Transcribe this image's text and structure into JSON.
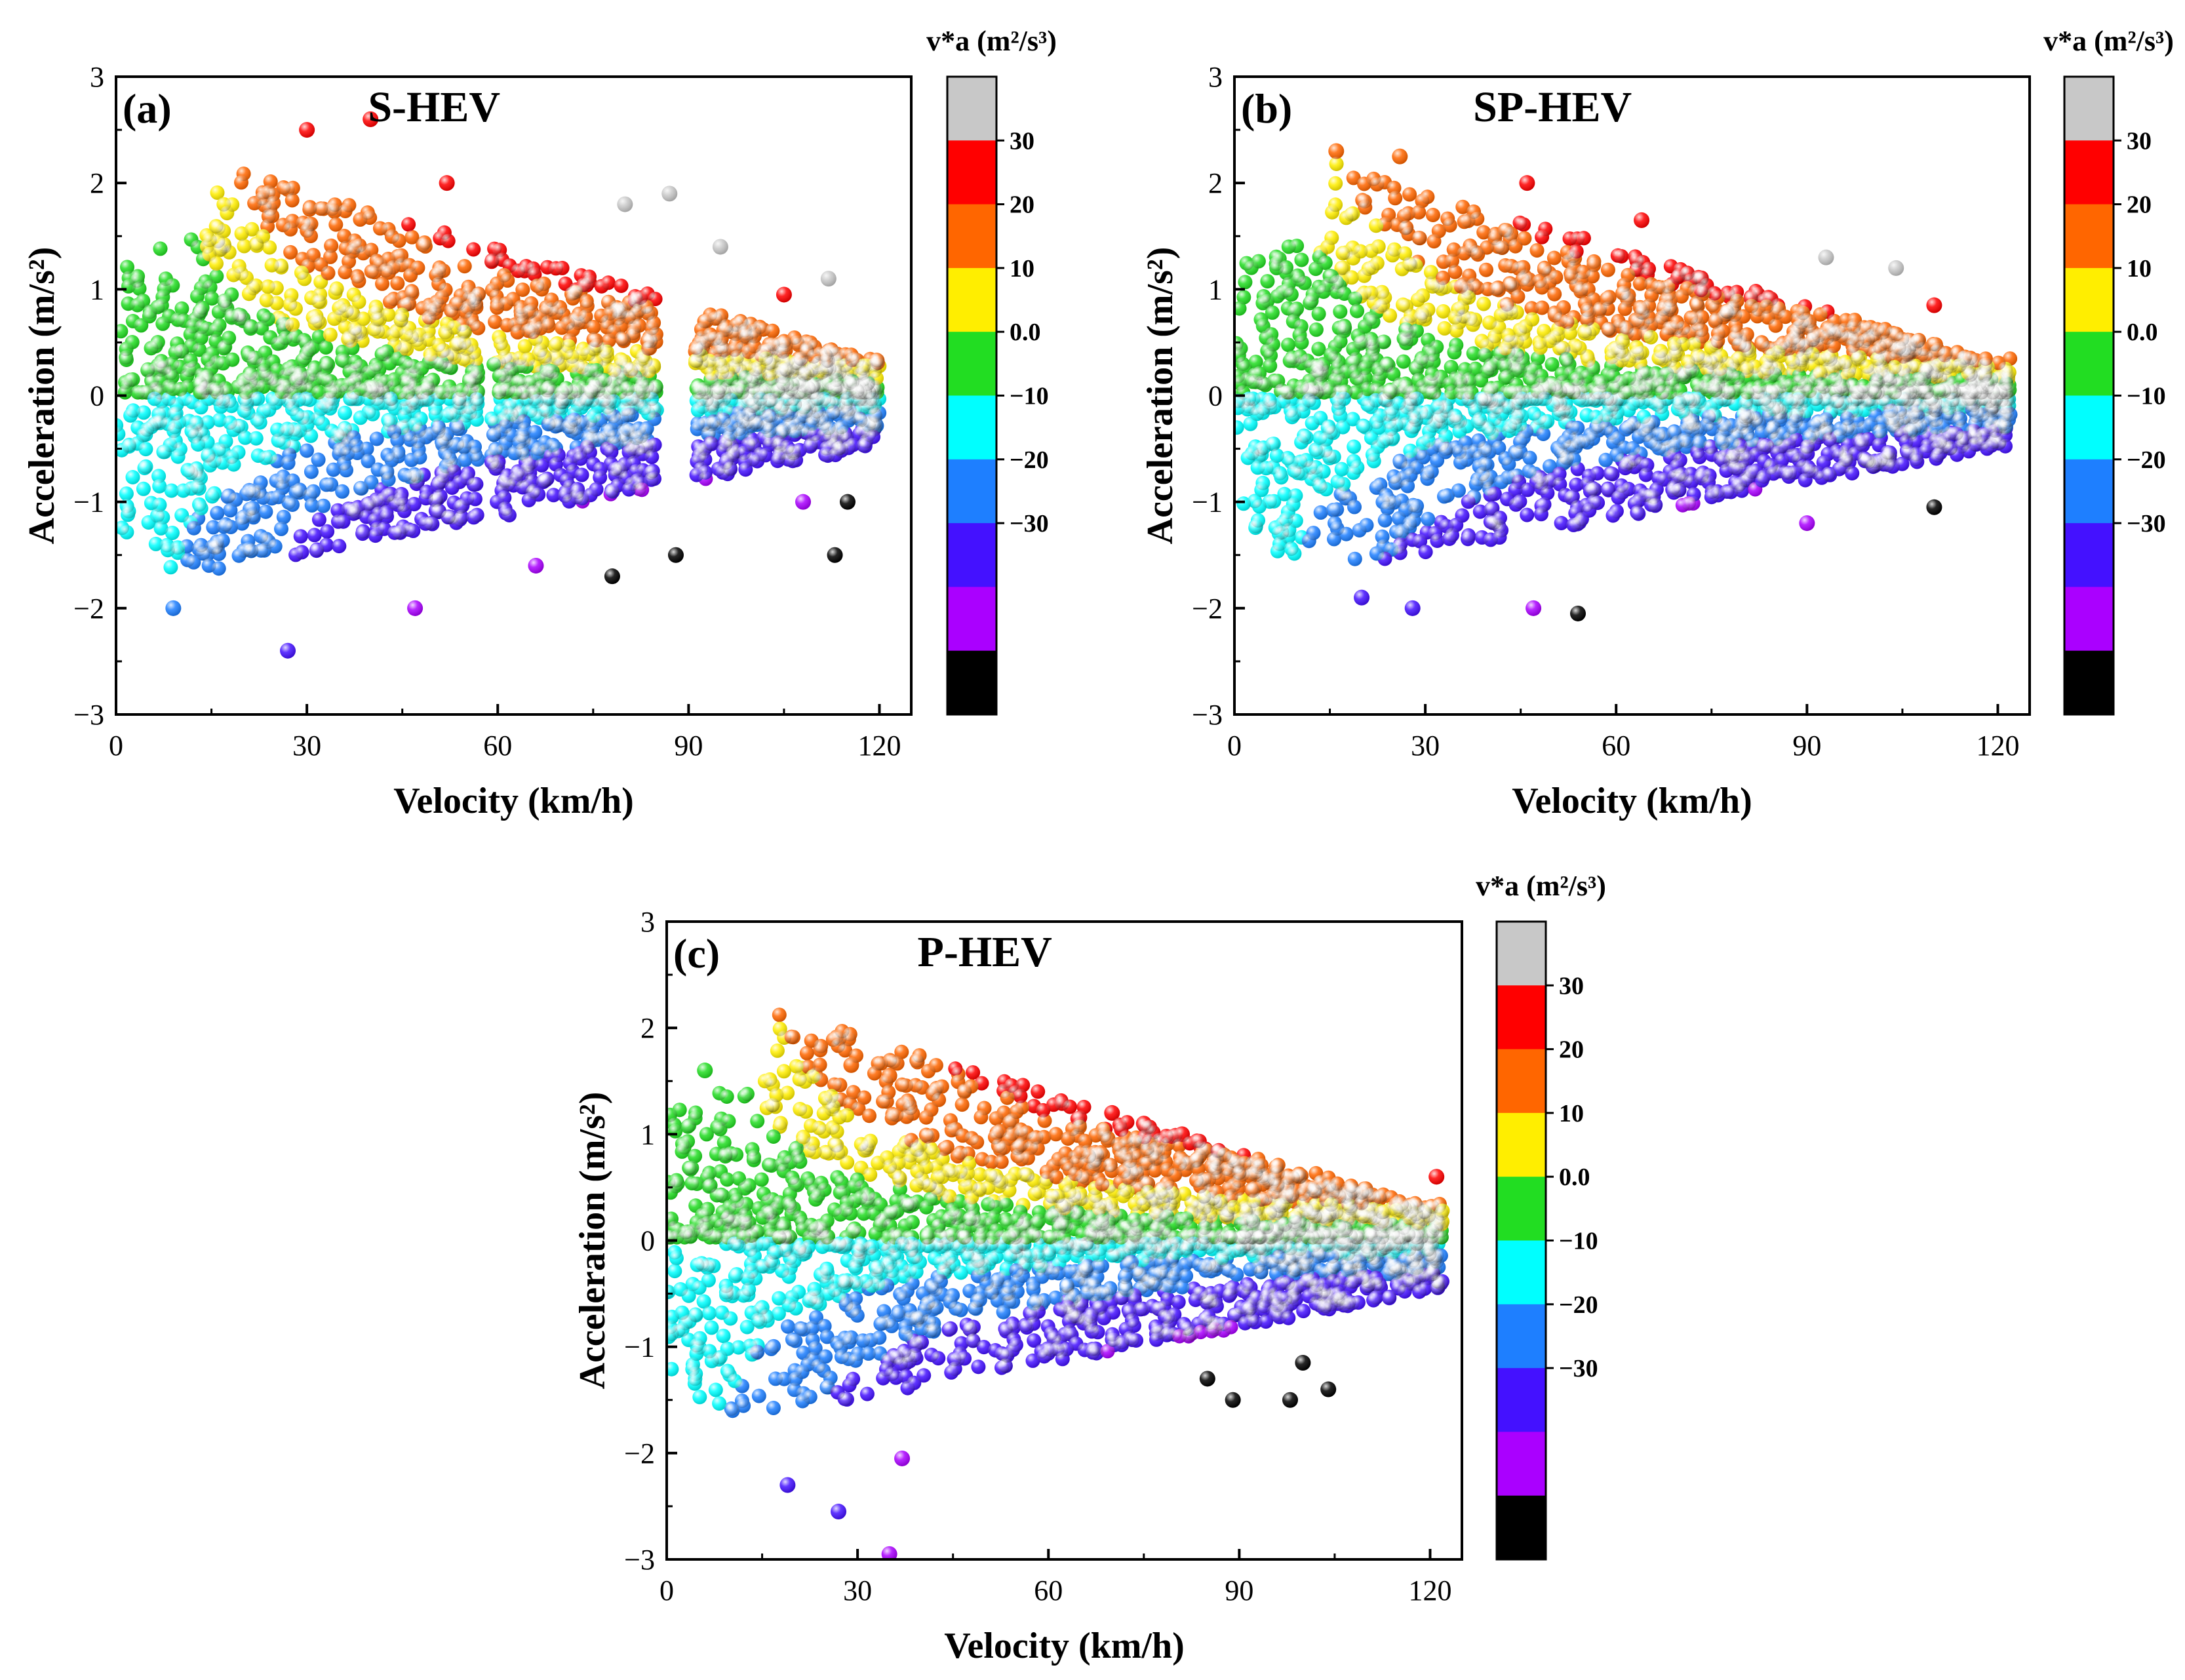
{
  "figure": {
    "colorbar_title": "v*a (m²/s³)",
    "colorbar": {
      "bins": [
        {
          "label": "",
          "color": "#c8c8c8"
        },
        {
          "label": "30",
          "color": "#ff0000"
        },
        {
          "label": "20",
          "color": "#ff6600"
        },
        {
          "label": "10",
          "color": "#ffee00"
        },
        {
          "label": "0.0",
          "color": "#22dd22"
        },
        {
          "label": "−10",
          "color": "#00ffff"
        },
        {
          "label": "−20",
          "color": "#1e7fff"
        },
        {
          "label": "−30",
          "color": "#4411ff"
        },
        {
          "label": "",
          "color": "#aa00ff"
        },
        {
          "label": "",
          "color": "#000000"
        }
      ]
    }
  },
  "chart_data": [
    {
      "type": "scatter",
      "panel": "(a)",
      "title": "S-HEV",
      "xlabel": "Velocity (km/h)",
      "ylabel": "Acceleration (m/s²)",
      "xlim": [
        0,
        125
      ],
      "ylim": [
        -3,
        3
      ],
      "xticks": [
        0,
        30,
        60,
        90,
        120
      ],
      "yticks": [
        -3,
        -2,
        -1,
        0,
        1,
        2,
        3
      ],
      "color_by": "v*a (m²/s³)",
      "color_bins": [
        -40,
        -30,
        -20,
        -10,
        0,
        10,
        20,
        30,
        40
      ],
      "speed_gaps": [
        [
          57,
          59
        ],
        [
          85,
          91
        ]
      ],
      "max_speed": 120,
      "points": [
        [
          30,
          2.5
        ],
        [
          40,
          2.6
        ],
        [
          52,
          2.0
        ],
        [
          80,
          1.8
        ],
        [
          87,
          1.9
        ],
        [
          95,
          1.4
        ],
        [
          112,
          1.1
        ],
        [
          105,
          0.95
        ],
        [
          9,
          -2.0
        ],
        [
          27,
          -2.4
        ],
        [
          47,
          -2.0
        ],
        [
          66,
          -1.6
        ],
        [
          78,
          -1.7
        ],
        [
          88,
          -1.5
        ],
        [
          108,
          -1.0
        ],
        [
          115,
          -1.0
        ],
        [
          113,
          -1.5
        ]
      ]
    },
    {
      "type": "scatter",
      "panel": "(b)",
      "title": "SP-HEV",
      "xlabel": "Velocity (km/h)",
      "ylabel": "Acceleration (m/s²)",
      "xlim": [
        0,
        125
      ],
      "ylim": [
        -3,
        3
      ],
      "xticks": [
        0,
        30,
        60,
        90,
        120
      ],
      "yticks": [
        -3,
        -2,
        -1,
        0,
        1,
        2,
        3
      ],
      "color_by": "v*a (m²/s³)",
      "color_bins": [
        -40,
        -30,
        -20,
        -10,
        0,
        10,
        20,
        30,
        40
      ],
      "speed_gaps": [],
      "max_speed": 122,
      "points": [
        [
          16,
          2.3
        ],
        [
          26,
          2.25
        ],
        [
          46,
          2.0
        ],
        [
          64,
          1.65
        ],
        [
          93,
          1.3
        ],
        [
          104,
          1.2
        ],
        [
          110,
          0.85
        ],
        [
          20,
          -1.9
        ],
        [
          28,
          -2.0
        ],
        [
          47,
          -2.0
        ],
        [
          54,
          -2.05
        ],
        [
          90,
          -1.2
        ],
        [
          110,
          -1.05
        ]
      ]
    },
    {
      "type": "scatter",
      "panel": "(c)",
      "title": "P-HEV",
      "xlabel": "Velocity (km/h)",
      "ylabel": "Acceleration (m/s²)",
      "xlim": [
        0,
        125
      ],
      "ylim": [
        -3,
        3
      ],
      "xticks": [
        0,
        30,
        60,
        90,
        120
      ],
      "yticks": [
        -3,
        -2,
        -1,
        0,
        1,
        2,
        3
      ],
      "color_by": "v*a (m²/s³)",
      "color_bins": [
        -40,
        -30,
        -20,
        -10,
        0,
        10,
        20,
        30,
        40
      ],
      "speed_gaps": [],
      "max_speed": 122,
      "points": [
        [
          6,
          1.6
        ],
        [
          29,
          1.65
        ],
        [
          35,
          1.55
        ],
        [
          70,
          1.2
        ],
        [
          75,
          1.1
        ],
        [
          81,
          1.0
        ],
        [
          121,
          0.6
        ],
        [
          19,
          -2.3
        ],
        [
          27,
          -2.55
        ],
        [
          35,
          -2.95
        ],
        [
          37,
          -2.05
        ],
        [
          85,
          -1.3
        ],
        [
          89,
          -1.5
        ],
        [
          98,
          -1.5
        ],
        [
          104,
          -1.4
        ],
        [
          100,
          -1.15
        ]
      ]
    }
  ]
}
